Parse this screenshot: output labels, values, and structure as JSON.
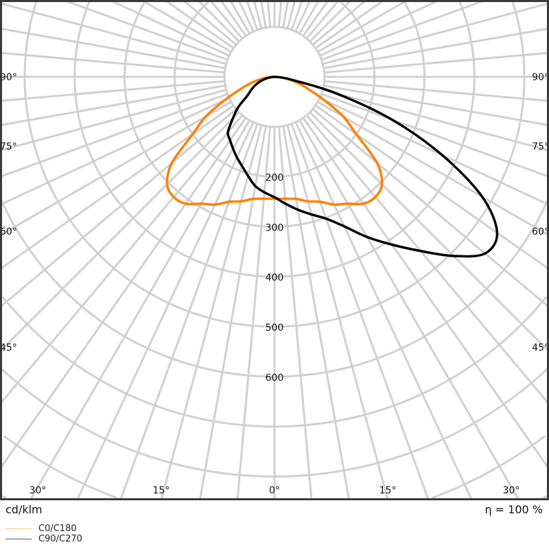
{
  "chart_data": {
    "type": "polar",
    "unit_label": "cd/klm",
    "efficiency_label": "η = 100 %",
    "radial_ticks": [
      200,
      300,
      400,
      500,
      600
    ],
    "radial_grid_step": 100,
    "angle_labels": {
      "sides": [
        "90°",
        "75°",
        "60°",
        "45°"
      ],
      "bottom": [
        "30°",
        "15°",
        "0°",
        "15°",
        "30°"
      ]
    },
    "angles_deg": [
      0,
      5,
      10,
      15,
      20,
      25,
      30,
      35,
      40,
      45,
      50,
      55,
      60,
      65,
      70,
      75,
      80,
      85,
      90
    ],
    "series": [
      {
        "name": "C0/C180",
        "color": "#ff8000",
        "legend_color": "#ffc58a",
        "right_values": [
          244,
          245,
          248,
          258,
          266,
          282,
          293,
          310,
          314,
          304,
          268,
          200,
          159,
          110,
          73,
          50,
          30,
          14,
          0
        ],
        "left_values": [
          244,
          245,
          248,
          258,
          266,
          282,
          293,
          310,
          314,
          304,
          268,
          200,
          159,
          110,
          73,
          50,
          30,
          14,
          0
        ]
      },
      {
        "name": "C90/C270",
        "color": "#000000",
        "legend_color": "#555555",
        "right_values": [
          241,
          255,
          270,
          285,
          302,
          330,
          370,
          410,
          455,
          507,
          550,
          544,
          480,
          370,
          250,
          128,
          38,
          12,
          0
        ],
        "left_values": [
          241,
          232,
          222,
          205,
          190,
          178,
          166,
          155,
          145,
          118,
          95,
          67,
          55,
          45,
          35,
          25,
          15,
          5,
          0
        ]
      }
    ],
    "grid": true,
    "grid_color": "#d0d0d0",
    "legend_placement": "bottom-left"
  }
}
